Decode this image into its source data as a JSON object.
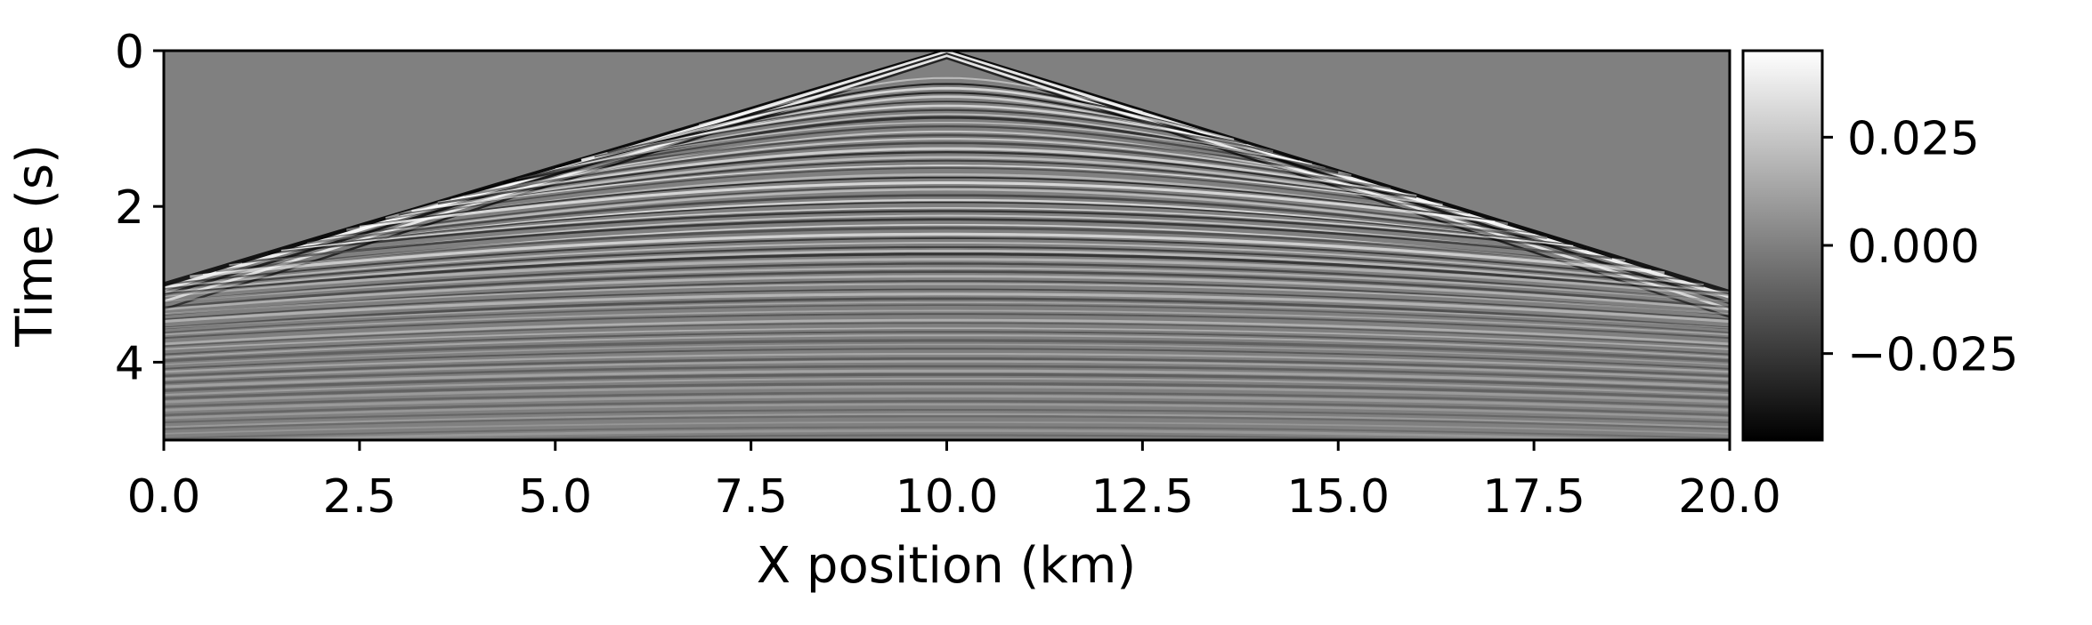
{
  "chart_data": {
    "type": "heatmap",
    "title": "",
    "xlabel": "X position (km)",
    "ylabel": "Time (s)",
    "xlim": [
      0,
      20
    ],
    "ylim": [
      5,
      0
    ],
    "x_ticks": [
      "0.0",
      "2.5",
      "5.0",
      "7.5",
      "10.0",
      "12.5",
      "15.0",
      "17.5",
      "20.0"
    ],
    "x_tick_values": [
      0,
      2.5,
      5,
      7.5,
      10,
      12.5,
      15,
      17.5,
      20
    ],
    "y_ticks": [
      "0",
      "2",
      "4"
    ],
    "y_tick_values": [
      0,
      2,
      4
    ],
    "colormap": "gray",
    "background_color": "#808080",
    "colorbar": {
      "range": [
        -0.045,
        0.045
      ],
      "ticks": [
        "0.025",
        "0.000",
        "−0.025"
      ],
      "tick_values": [
        0.025,
        0,
        -0.025
      ]
    },
    "source_x_km": 10,
    "first_arrival_time_s": {
      "x_km": [
        0,
        10,
        20
      ],
      "time_s": [
        3.0,
        0.0,
        3.1
      ]
    }
  }
}
